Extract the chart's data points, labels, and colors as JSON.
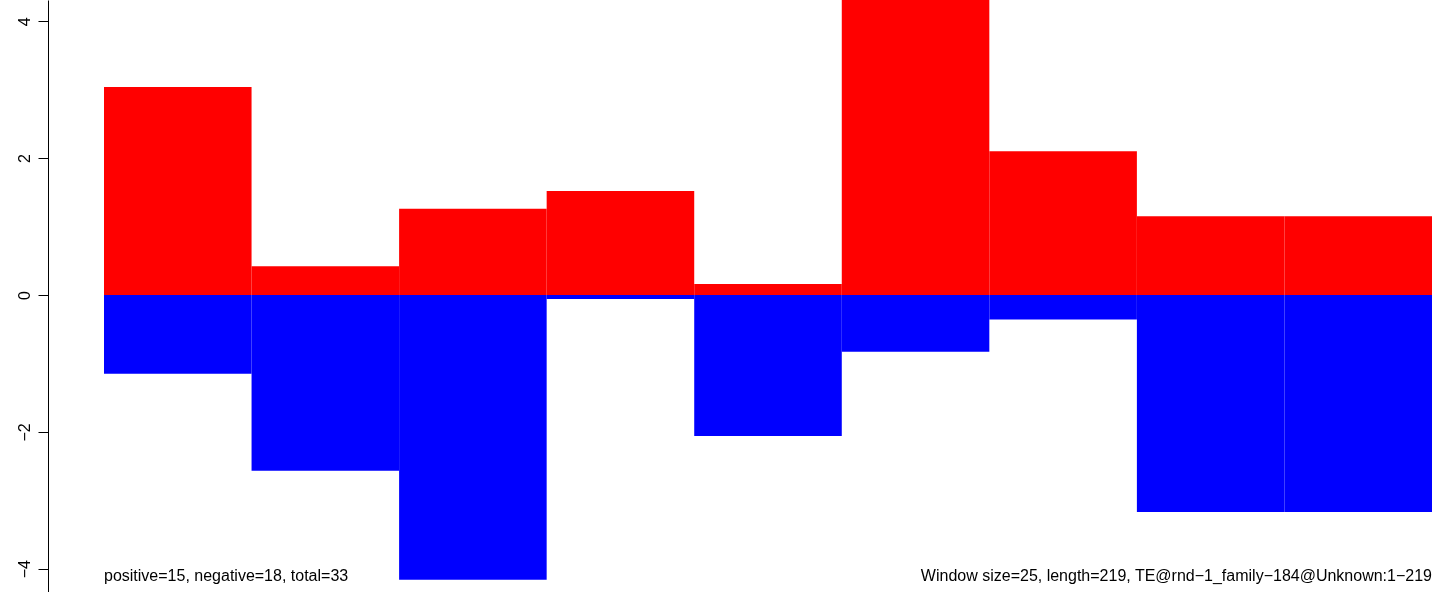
{
  "chart_data": {
    "type": "bar",
    "stacked": true,
    "categories": [
      null,
      null,
      null,
      null,
      null,
      null,
      null,
      null,
      null
    ],
    "series": [
      {
        "color": "#ff0000",
        "values": [
          3.04,
          0.42,
          1.26,
          1.52,
          0.16,
          4.31,
          2.1,
          1.15,
          1.15
        ]
      },
      {
        "color": "#0000ff",
        "values": [
          -1.15,
          -2.57,
          -4.16,
          -0.06,
          -2.06,
          -0.83,
          -0.36,
          -3.17,
          -3.17
        ]
      }
    ],
    "ylim": [
      -4.34,
      4.31
    ],
    "yticks": [
      {
        "value": -4,
        "label": "−4"
      },
      {
        "value": -2,
        "label": "−2"
      },
      0,
      2,
      4
    ],
    "grid": false,
    "annotations": [
      "positive=15, negative=18, total=33",
      "Window size=25, length=219, TE@rnd−1_family−184@Unknown:1−219"
    ]
  }
}
